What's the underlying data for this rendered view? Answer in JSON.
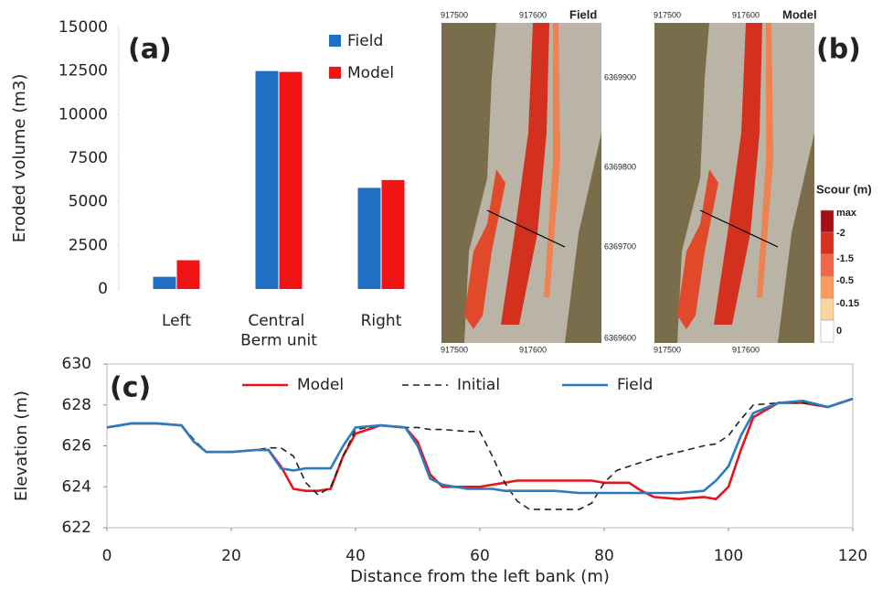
{
  "chart_data": [
    {
      "type": "bar",
      "panel_label": "(a)",
      "y_label": "Eroded volume (m3)",
      "categories": [
        "Left",
        "Central\nBerm unit",
        "Right"
      ],
      "series": [
        {
          "name": "Field",
          "color": "#1f6fc5",
          "values": [
            700,
            12500,
            5800
          ]
        },
        {
          "name": "Model",
          "color": "#f01414",
          "values": [
            1650,
            12450,
            6250
          ]
        }
      ],
      "ylim": [
        0,
        15000
      ],
      "yticks": [
        0,
        2500,
        5000,
        7500,
        10000,
        12500,
        15000
      ]
    },
    {
      "type": "line",
      "panel_label": "(c)",
      "x_label": "Distance from the left bank (m)",
      "y_label": "Elevation (m)",
      "x": [
        0,
        4,
        8,
        12,
        14,
        16,
        20,
        24,
        26,
        28,
        30,
        32,
        34,
        36,
        38,
        40,
        44,
        48,
        50,
        52,
        54,
        58,
        60,
        62,
        64,
        66,
        68,
        72,
        76,
        78,
        80,
        82,
        84,
        86,
        88,
        92,
        96,
        98,
        100,
        102,
        104,
        108,
        112,
        116,
        120
      ],
      "series": [
        {
          "name": "Model",
          "color": "#e8141c",
          "style": "solid",
          "values": [
            626.9,
            627.1,
            627.1,
            627.0,
            626.2,
            625.7,
            625.7,
            625.8,
            625.8,
            625.0,
            623.9,
            623.8,
            623.8,
            623.9,
            625.5,
            626.6,
            627.0,
            626.9,
            626.2,
            624.6,
            624.0,
            624.0,
            624.0,
            624.1,
            624.2,
            624.3,
            624.3,
            624.3,
            624.3,
            624.3,
            624.2,
            624.2,
            624.2,
            623.8,
            623.5,
            623.4,
            623.5,
            623.4,
            624.0,
            625.8,
            627.4,
            628.1,
            628.1,
            627.9,
            628.3
          ]
        },
        {
          "name": "Initial",
          "color": "#222222",
          "style": "dashed",
          "values": [
            626.9,
            627.1,
            627.1,
            627.0,
            626.3,
            625.7,
            625.7,
            625.8,
            625.9,
            625.9,
            625.5,
            624.2,
            623.6,
            624.0,
            625.5,
            626.8,
            627.0,
            626.9,
            626.9,
            626.8,
            626.8,
            626.7,
            626.7,
            625.5,
            624.2,
            623.3,
            622.9,
            622.9,
            622.9,
            623.2,
            624.2,
            624.8,
            625.0,
            625.2,
            625.4,
            625.7,
            626.0,
            626.1,
            626.5,
            627.3,
            628.0,
            628.1,
            628.1,
            627.9,
            628.3
          ]
        },
        {
          "name": "Field",
          "color": "#2a7bbf",
          "style": "solid",
          "values": [
            626.9,
            627.1,
            627.1,
            627.0,
            626.2,
            625.7,
            625.7,
            625.8,
            625.8,
            624.9,
            624.8,
            624.9,
            624.9,
            624.9,
            626.0,
            626.9,
            627.0,
            626.9,
            626.0,
            624.4,
            624.1,
            623.9,
            623.9,
            623.9,
            623.8,
            623.8,
            623.8,
            623.8,
            623.7,
            623.7,
            623.7,
            623.7,
            623.7,
            623.7,
            623.7,
            623.7,
            623.8,
            624.3,
            625.0,
            626.5,
            627.6,
            628.1,
            628.2,
            627.9,
            628.3
          ]
        }
      ],
      "xlim": [
        0,
        120
      ],
      "xticks": [
        0,
        20,
        40,
        60,
        80,
        100,
        120
      ],
      "ylim": [
        622,
        630
      ],
      "yticks": [
        622,
        624,
        626,
        628,
        630
      ]
    }
  ],
  "maps": {
    "panel_label": "(b)",
    "panels": [
      {
        "title": "Field",
        "top_ticks": [
          "917500",
          "917600"
        ],
        "bottom_ticks": [
          "917500",
          "917600"
        ],
        "right_ticks": [
          "6369900",
          "6369800",
          "6369700",
          "6369600"
        ]
      },
      {
        "title": "Model",
        "top_ticks": [
          "917500",
          "917600"
        ],
        "bottom_ticks": [
          "917500",
          "917600"
        ]
      }
    ],
    "colorbar": {
      "title": "Scour (m)",
      "labels": [
        "max",
        "-2",
        "-1.5",
        "-0.5",
        "-0.15",
        "0"
      ]
    }
  }
}
